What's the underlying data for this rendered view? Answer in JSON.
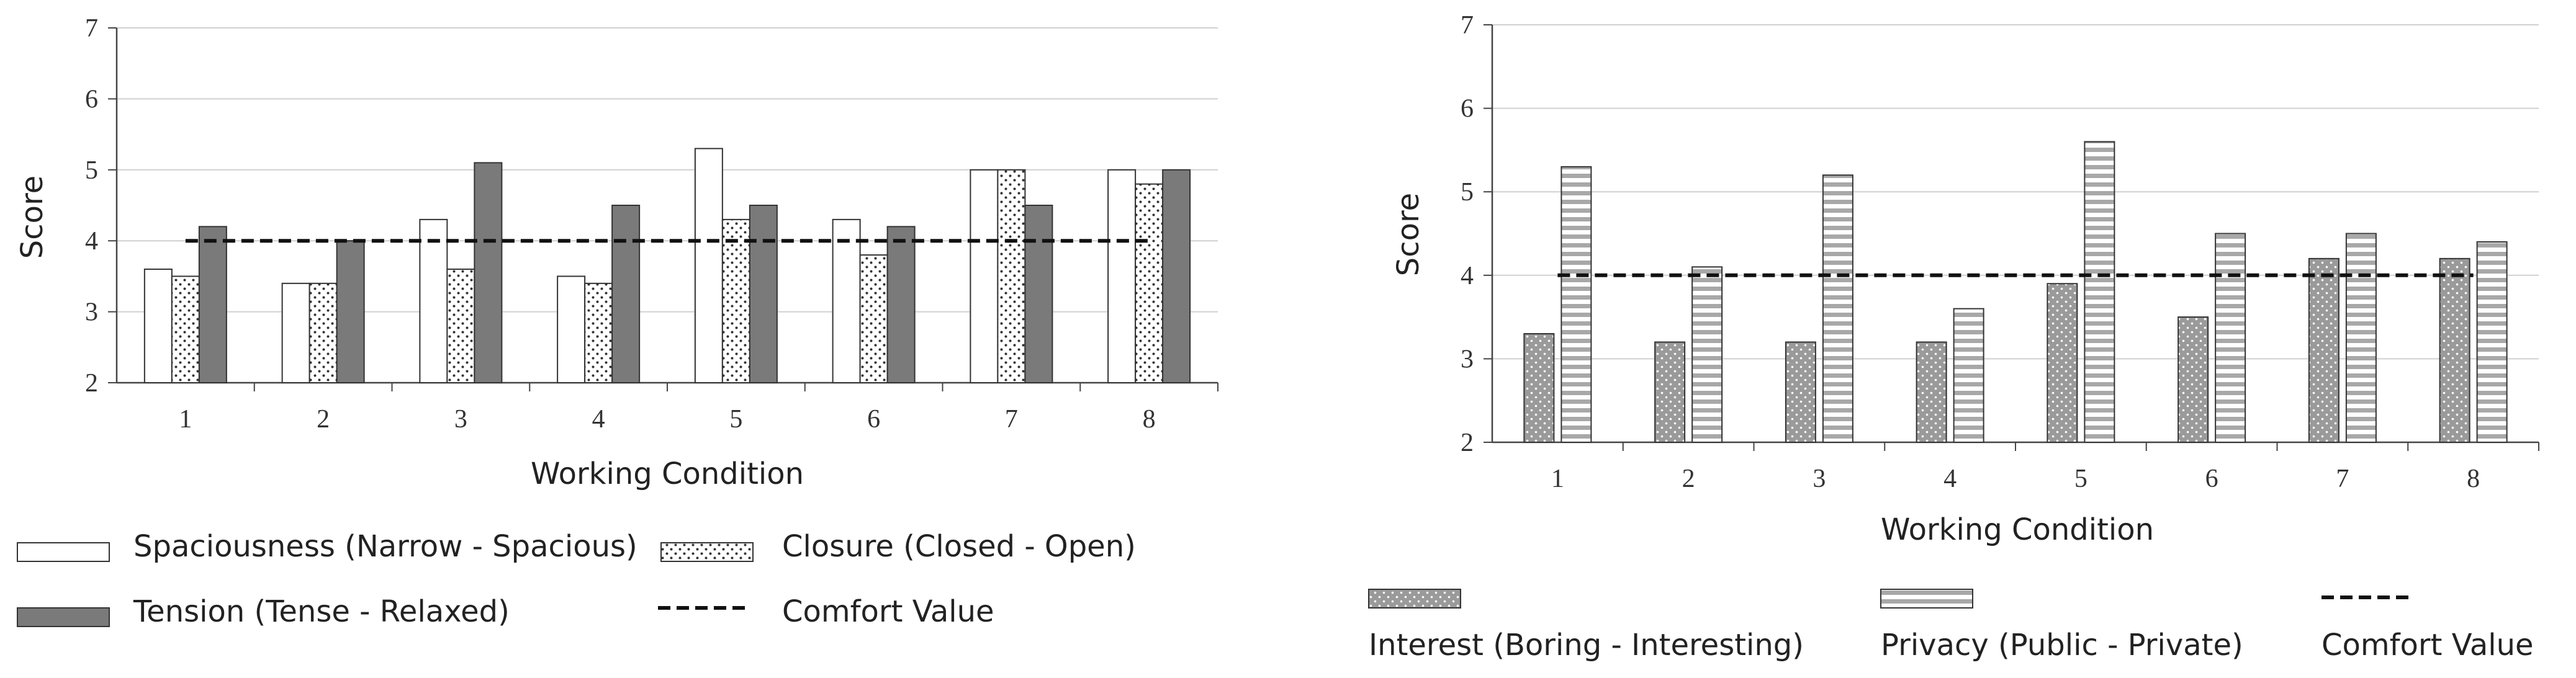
{
  "chart_data": [
    {
      "type": "bar",
      "ylabel": "Score",
      "xlabel": "Working Condition",
      "ylim": [
        2,
        7
      ],
      "y_ticks": [
        "2",
        "3",
        "4",
        "5",
        "6",
        "7"
      ],
      "categories": [
        "1",
        "2",
        "3",
        "4",
        "5",
        "6",
        "7",
        "8"
      ],
      "series": [
        {
          "name": "Spaciousness (Narrow - Spacious)",
          "values": [
            3.6,
            3.4,
            4.3,
            3.5,
            5.3,
            4.3,
            5.0,
            5.0
          ],
          "pattern": "white"
        },
        {
          "name": "Closure (Closed - Open)",
          "values": [
            3.5,
            3.4,
            3.6,
            3.4,
            4.3,
            3.8,
            5.0,
            4.8
          ],
          "pattern": "dots"
        },
        {
          "name": "Tension (Tense - Relaxed)",
          "values": [
            4.2,
            4.0,
            5.1,
            4.5,
            4.5,
            4.2,
            4.5,
            5.0
          ],
          "pattern": "darkgray"
        }
      ],
      "reference_line": {
        "name": "Comfort Value",
        "value": 4.0
      },
      "grid": true,
      "legend_position": "bottom"
    },
    {
      "type": "bar",
      "ylabel": "Score",
      "xlabel": "Working Condition",
      "ylim": [
        2,
        7
      ],
      "y_ticks": [
        "2",
        "3",
        "4",
        "5",
        "6",
        "7"
      ],
      "categories": [
        "1",
        "2",
        "3",
        "4",
        "5",
        "6",
        "7",
        "8"
      ],
      "series": [
        {
          "name": "Interest (Boring - Interesting)",
          "values": [
            3.3,
            3.2,
            3.2,
            3.2,
            3.9,
            3.5,
            4.2,
            4.2
          ],
          "pattern": "graydots"
        },
        {
          "name": "Privacy (Public - Private)",
          "values": [
            5.3,
            4.1,
            5.2,
            3.6,
            5.6,
            4.5,
            4.5,
            4.4
          ],
          "pattern": "stripes"
        }
      ],
      "reference_line": {
        "name": "Comfort Value",
        "value": 4.0
      },
      "grid": true,
      "legend_position": "bottom"
    }
  ]
}
